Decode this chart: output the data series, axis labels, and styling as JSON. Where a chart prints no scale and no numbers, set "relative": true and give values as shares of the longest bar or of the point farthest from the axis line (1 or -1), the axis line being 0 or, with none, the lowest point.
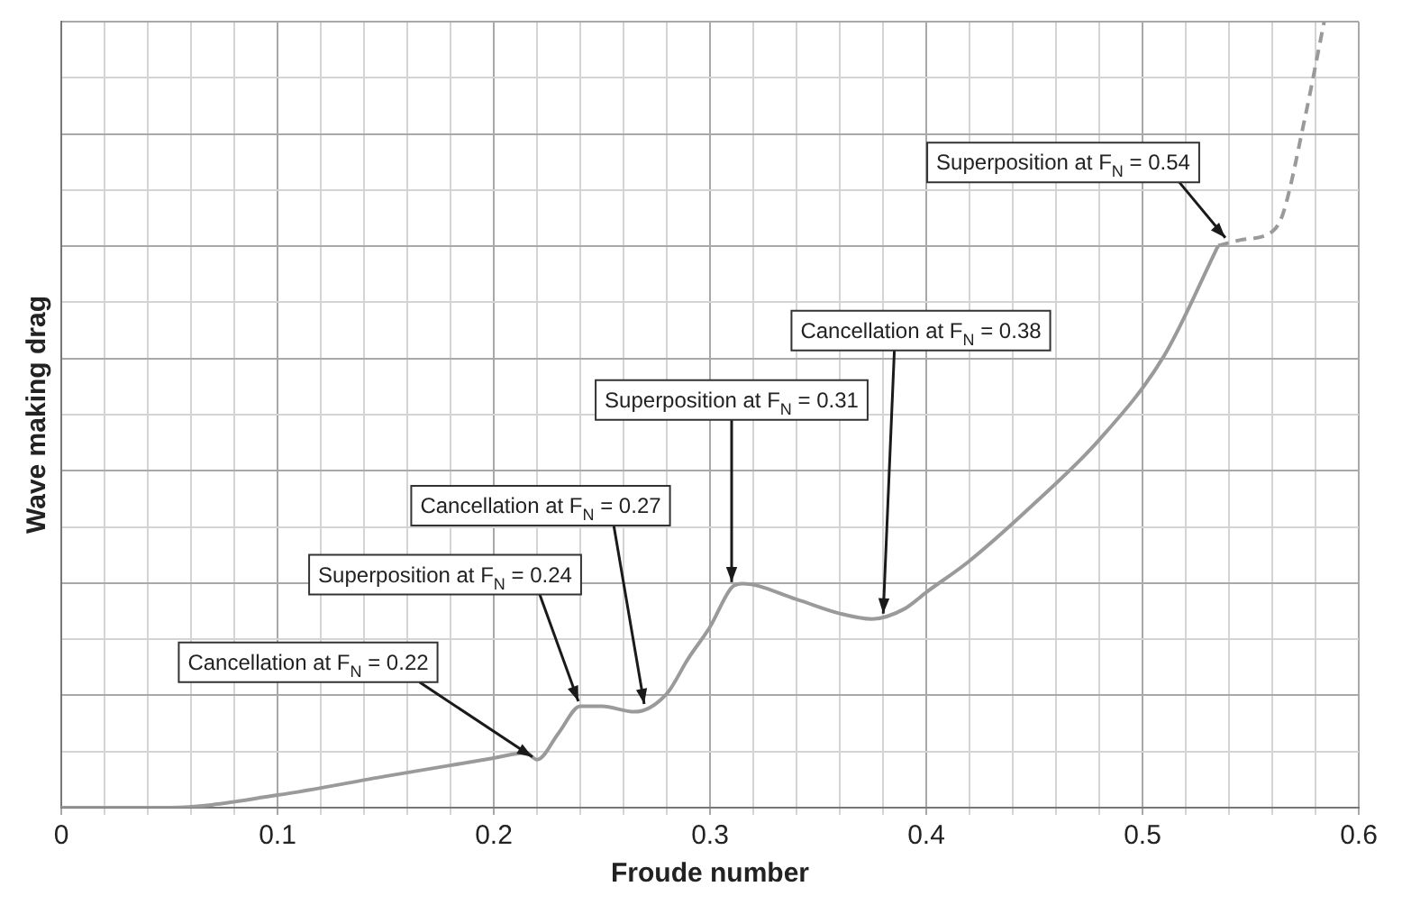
{
  "chart_data": {
    "type": "line",
    "xlabel": "Froude number",
    "ylabel": "Wave making drag",
    "relative": true,
    "grid": true,
    "legend": false,
    "marker": "none",
    "xlim": [
      0,
      0.6
    ],
    "xticks": [
      0,
      {
        "value": 0.02,
        "label": null
      },
      {
        "value": 0.04,
        "label": null
      },
      {
        "value": 0.06,
        "label": null
      },
      {
        "value": 0.08,
        "label": null
      },
      0.1,
      {
        "value": 0.12,
        "label": null
      },
      {
        "value": 0.14,
        "label": null
      },
      {
        "value": 0.16,
        "label": null
      },
      {
        "value": 0.18,
        "label": null
      },
      0.2,
      {
        "value": 0.22,
        "label": null
      },
      {
        "value": 0.24,
        "label": null
      },
      {
        "value": 0.26,
        "label": null
      },
      {
        "value": 0.28,
        "label": null
      },
      0.3,
      {
        "value": 0.32,
        "label": null
      },
      {
        "value": 0.34,
        "label": null
      },
      {
        "value": 0.36,
        "label": null
      },
      {
        "value": 0.38,
        "label": null
      },
      0.4,
      {
        "value": 0.42,
        "label": null
      },
      {
        "value": 0.44,
        "label": null
      },
      {
        "value": 0.46,
        "label": null
      },
      {
        "value": 0.48,
        "label": null
      },
      0.5,
      {
        "value": 0.52,
        "label": null
      },
      {
        "value": 0.54,
        "label": null
      },
      {
        "value": 0.56,
        "label": null
      },
      {
        "value": 0.58,
        "label": null
      },
      0.6
    ],
    "series": [
      {
        "color": "#9a9a9a",
        "line_style": "solid",
        "x": [
          0,
          0.05,
          0.1,
          0.15,
          0.2,
          0.215,
          0.22,
          0.23,
          0.24,
          0.25,
          0.265,
          0.28,
          0.29,
          0.3,
          0.31,
          0.315,
          0.34,
          0.36,
          0.375,
          0.39,
          0.4,
          0.42,
          0.45,
          0.48,
          0.51,
          0.535
        ],
        "values": [
          0,
          0,
          0.016,
          0.04,
          0.063,
          0.07,
          0.061,
          0.095,
          0.129,
          0.129,
          0.122,
          0.145,
          0.19,
          0.23,
          0.28,
          0.285,
          0.265,
          0.247,
          0.24,
          0.253,
          0.274,
          0.314,
          0.387,
          0.468,
          0.575,
          0.715
        ]
      },
      {
        "color": "#9a9a9a",
        "line_style": "dashed",
        "x": [
          0.535,
          0.545,
          0.56,
          0.565,
          0.575,
          0.584
        ],
        "values": [
          0.715,
          0.722,
          0.733,
          0.756,
          0.876,
          1
        ]
      }
    ],
    "annotations": [
      {
        "text": "Cancellation at F$_{N}$ = 0.22",
        "x": 0.22,
        "y": 0.061
      },
      {
        "text": "Superposition at F$_{N}$ = 0.24",
        "x": 0.24,
        "y": 0.129
      },
      {
        "text": "Cancellation at F$_{N}$ = 0.27",
        "x": 0.27,
        "y": 0.125
      },
      {
        "text": "Superposition at F$_{N}$ = 0.31",
        "x": 0.31,
        "y": 0.28
      },
      {
        "text": "Cancellation at F$_{N}$ = 0.38",
        "x": 0.38,
        "y": 0.24
      },
      {
        "text": "Superposition at F$_{N}$ = 0.54",
        "x": 0.54,
        "y": 0.72
      }
    ]
  }
}
